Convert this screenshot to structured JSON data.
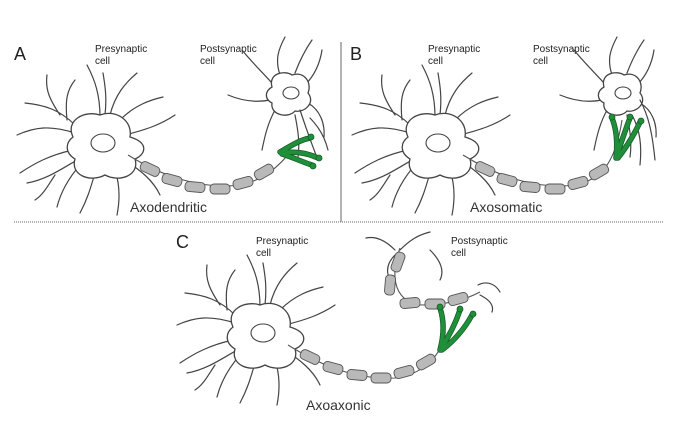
{
  "figure_type": "synapse types diagram",
  "colors": {
    "terminal": "#1f8f3a",
    "myelin": "#b9b9b9",
    "outline": "#444444"
  },
  "panels": [
    {
      "letter": "A",
      "presynaptic_label": [
        "Presynaptic",
        "cell"
      ],
      "postsynaptic_label": [
        "Postsynaptic",
        "cell"
      ],
      "caption": "Axodendritic"
    },
    {
      "letter": "B",
      "presynaptic_label": [
        "Presynaptic",
        "cell"
      ],
      "postsynaptic_label": [
        "Postsynaptic",
        "cell"
      ],
      "caption": "Axosomatic"
    },
    {
      "letter": "C",
      "presynaptic_label": [
        "Presynaptic",
        "cell"
      ],
      "postsynaptic_label": [
        "Postsynaptic",
        "cell"
      ],
      "caption": "Axoaxonic"
    }
  ]
}
